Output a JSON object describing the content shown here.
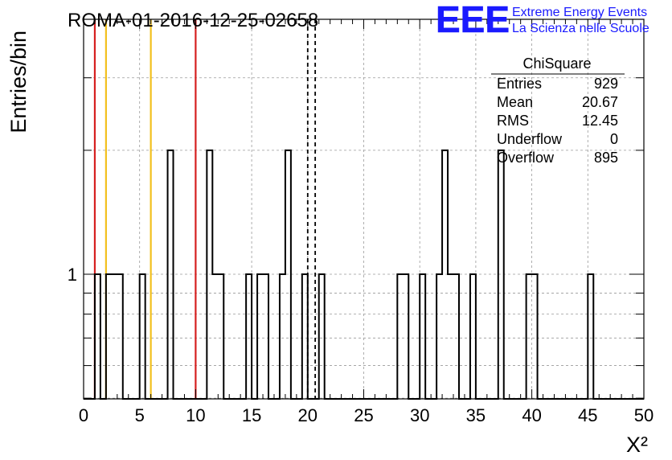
{
  "chart_data": {
    "type": "bar",
    "title": "ROMA-01-2016-12-25-02658",
    "xlabel": "X²",
    "ylabel": "Entries/bin",
    "xlim": [
      0,
      50
    ],
    "y_scale": "log",
    "x_ticks": [
      "0",
      "5",
      "10",
      "15",
      "20",
      "25",
      "30",
      "35",
      "40",
      "45",
      "50"
    ],
    "y_ticks": [
      "1"
    ],
    "grid": true,
    "bin_width": 0.5,
    "bins": [
      {
        "x": 1.0,
        "value": 1
      },
      {
        "x": 2.0,
        "value": 1
      },
      {
        "x": 2.5,
        "value": 1
      },
      {
        "x": 3.0,
        "value": 1
      },
      {
        "x": 5.0,
        "value": 1
      },
      {
        "x": 7.5,
        "value": 2
      },
      {
        "x": 11.0,
        "value": 2
      },
      {
        "x": 11.5,
        "value": 1
      },
      {
        "x": 12.0,
        "value": 1
      },
      {
        "x": 14.5,
        "value": 1
      },
      {
        "x": 15.5,
        "value": 1
      },
      {
        "x": 16.0,
        "value": 1
      },
      {
        "x": 17.5,
        "value": 1
      },
      {
        "x": 18.0,
        "value": 2
      },
      {
        "x": 19.5,
        "value": 1
      },
      {
        "x": 21.0,
        "value": 1
      },
      {
        "x": 28.0,
        "value": 1
      },
      {
        "x": 28.5,
        "value": 1
      },
      {
        "x": 30.0,
        "value": 1
      },
      {
        "x": 31.5,
        "value": 1
      },
      {
        "x": 32.0,
        "value": 2
      },
      {
        "x": 32.5,
        "value": 1
      },
      {
        "x": 33.0,
        "value": 1
      },
      {
        "x": 34.5,
        "value": 1
      },
      {
        "x": 37.0,
        "value": 2
      },
      {
        "x": 39.5,
        "value": 1
      },
      {
        "x": 40.0,
        "value": 1
      },
      {
        "x": 45.0,
        "value": 1
      }
    ],
    "reference_lines": [
      {
        "x": 1.0,
        "color": "#d62020",
        "style": "solid"
      },
      {
        "x": 2.0,
        "color": "#f2c01e",
        "style": "solid"
      },
      {
        "x": 6.0,
        "color": "#f2c01e",
        "style": "solid"
      },
      {
        "x": 10.0,
        "color": "#d62020",
        "style": "solid"
      },
      {
        "x": 20.0,
        "color": "#000000",
        "style": "dashed"
      },
      {
        "x": 20.67,
        "color": "#000000",
        "style": "dashed"
      }
    ],
    "stats_box": {
      "title": "ChiSquare",
      "rows": [
        {
          "label": "Entries",
          "value": "929"
        },
        {
          "label": "Mean",
          "value": "20.67"
        },
        {
          "label": "RMS",
          "value": "12.45"
        },
        {
          "label": "Underflow",
          "value": "0"
        },
        {
          "label": "Overflow",
          "value": "895"
        }
      ]
    }
  },
  "logo": {
    "letters": "EEE",
    "line1": "Extreme Energy Events",
    "line2": "La Scienza nelle Scuole",
    "color": "#1a1aff"
  }
}
